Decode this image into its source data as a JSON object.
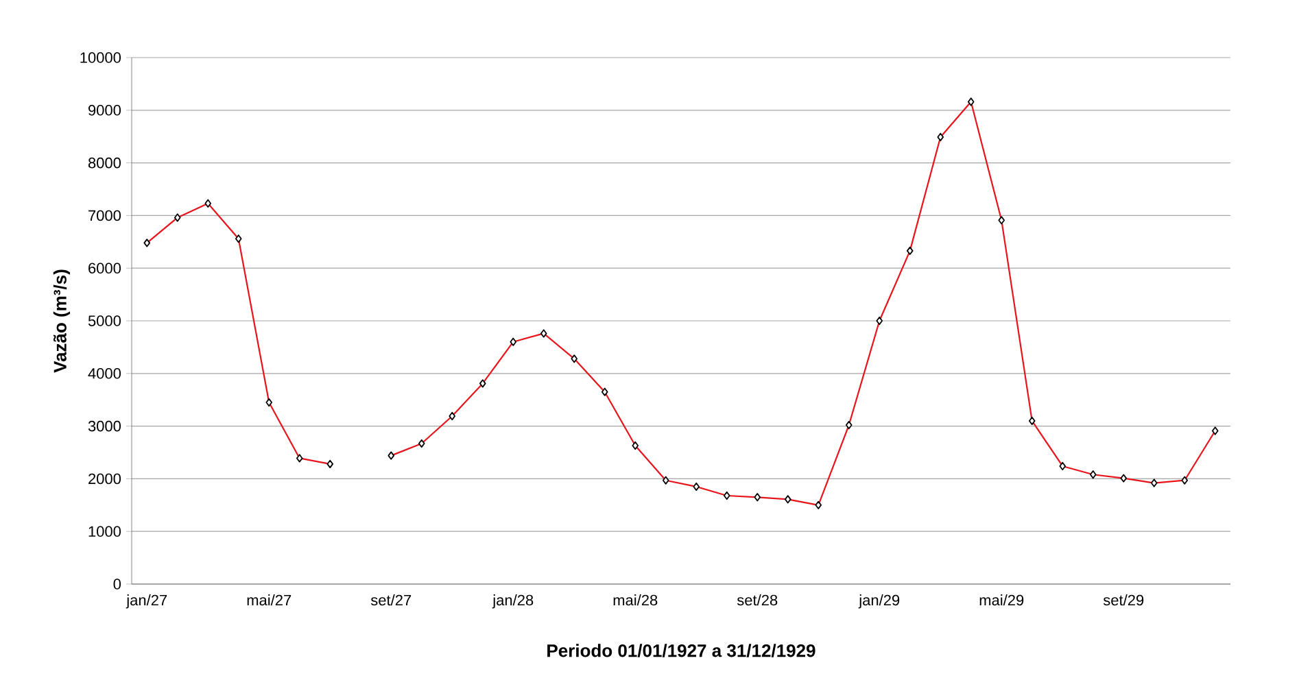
{
  "chart_data": {
    "type": "line",
    "xlabel": "Periodo 01/01/1927 a 31/12/1929",
    "ylabel": "Vazão (m³/s)",
    "categories": [
      "jan/27",
      null,
      null,
      null,
      "mai/27",
      null,
      null,
      null,
      "set/27",
      null,
      null,
      null,
      "jan/28",
      null,
      null,
      null,
      "mai/28",
      null,
      null,
      null,
      "set/28",
      null,
      null,
      null,
      "jan/29",
      null,
      null,
      null,
      "mai/29",
      null,
      null,
      null,
      "set/29",
      null,
      null,
      null
    ],
    "series": [
      {
        "color": "#e8141c",
        "values": [
          6480,
          6960,
          7230,
          6560,
          3450,
          2390,
          2280,
          null,
          2440,
          2670,
          3190,
          3810,
          4600,
          4760,
          4280,
          3650,
          2630,
          1970,
          1850,
          1680,
          1650,
          1610,
          1500,
          3020,
          5000,
          6330,
          8490,
          9160,
          6910,
          3100,
          2240,
          2080,
          2010,
          1920,
          1970,
          2910
        ]
      }
    ],
    "ylim": [
      0,
      10000
    ],
    "yticks": [
      0,
      1000,
      2000,
      3000,
      4000,
      5000,
      6000,
      7000,
      8000,
      9000,
      10000
    ],
    "grid": "y",
    "marker": "diamond",
    "line_style": "solid"
  }
}
